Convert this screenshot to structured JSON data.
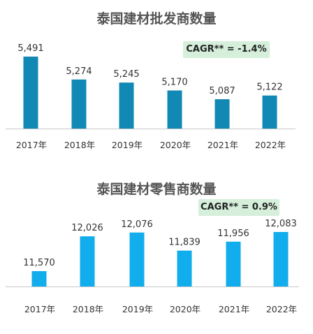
{
  "chart_data": [
    {
      "type": "bar",
      "title": "泰国建材批发商数量",
      "categories": [
        "2017年",
        "2018年",
        "2019年",
        "2020年",
        "2021年",
        "2022年"
      ],
      "values": [
        5491,
        5274,
        5245,
        5170,
        5087,
        5122
      ],
      "value_labels": [
        "5,491",
        "5,274",
        "5,245",
        "5,170",
        "5,087",
        "5,122"
      ],
      "annotation": "CAGR** = -1.4%",
      "bar_color": "#1288b4",
      "annotation_bg": "#d5efdb",
      "grid": false
    },
    {
      "type": "bar",
      "title": "泰国建材零售商数量",
      "categories": [
        "2017年",
        "2018年",
        "2019年",
        "2020年",
        "2021年",
        "2022年"
      ],
      "values": [
        11570,
        12026,
        12076,
        11839,
        11956,
        12083
      ],
      "value_labels": [
        "11,570",
        "12,026",
        "12,076",
        "11,839",
        "11,956",
        "12,083"
      ],
      "annotation": "CAGR** = 0.9%",
      "bar_color": "#11adec",
      "annotation_bg": "#d5efdb",
      "grid": false
    }
  ]
}
